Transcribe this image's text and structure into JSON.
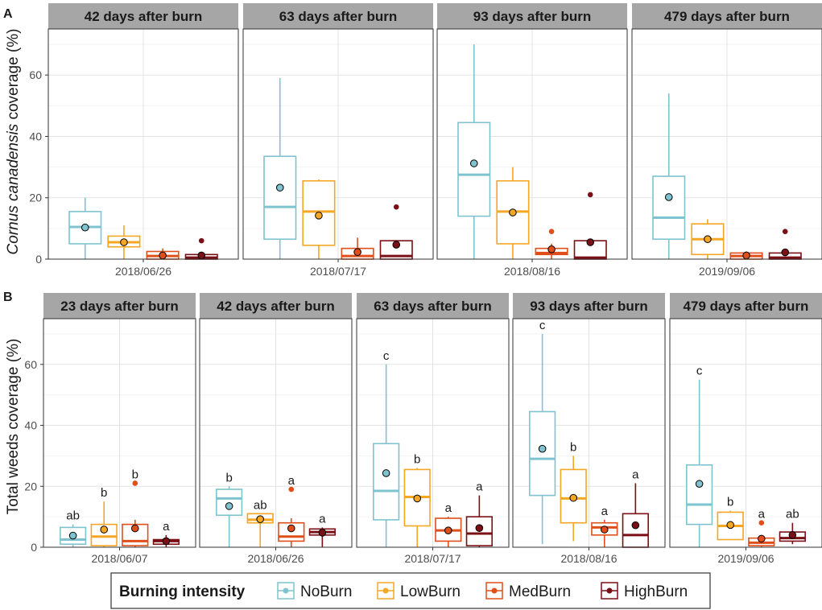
{
  "chart_data": [
    {
      "type": "box",
      "panel_label": "A",
      "ylabel_parts": {
        "italic": "Cornus canadensis",
        "rest": " coverage (%)"
      },
      "ylim": [
        0,
        75
      ],
      "yticks": [
        0,
        20,
        40,
        60
      ],
      "groups": [
        "NoBurn",
        "LowBurn",
        "MedBurn",
        "HighBurn"
      ],
      "facets": [
        {
          "title": "42 days after burn",
          "date": "2018/06/26",
          "boxes": [
            {
              "group": "NoBurn",
              "min": 0,
              "q1": 5,
              "median": 10.5,
              "q3": 15.5,
              "max": 20,
              "mean": 10.3,
              "outliers": [],
              "sig": ""
            },
            {
              "group": "LowBurn",
              "min": 0,
              "q1": 4,
              "median": 5.5,
              "q3": 7.5,
              "max": 11,
              "mean": 5.5,
              "outliers": [],
              "sig": ""
            },
            {
              "group": "MedBurn",
              "min": 0,
              "q1": 0,
              "median": 1,
              "q3": 2.5,
              "max": 3.5,
              "mean": 1.2,
              "outliers": [],
              "sig": ""
            },
            {
              "group": "HighBurn",
              "min": 0,
              "q1": 0,
              "median": 0.5,
              "q3": 1.5,
              "max": 2,
              "mean": 1.2,
              "outliers": [
                6
              ],
              "sig": ""
            }
          ]
        },
        {
          "title": "63 days after burn",
          "date": "2018/07/17",
          "boxes": [
            {
              "group": "NoBurn",
              "min": 0,
              "q1": 6.5,
              "median": 17,
              "q3": 33.5,
              "max": 59,
              "mean": 23.3,
              "outliers": [],
              "sig": ""
            },
            {
              "group": "LowBurn",
              "min": 0,
              "q1": 4.5,
              "median": 15.5,
              "q3": 25.5,
              "max": 26,
              "mean": 14.2,
              "outliers": [],
              "sig": ""
            },
            {
              "group": "MedBurn",
              "min": 0,
              "q1": 0,
              "median": 1,
              "q3": 3.5,
              "max": 7,
              "mean": 2.3,
              "outliers": [],
              "sig": ""
            },
            {
              "group": "HighBurn",
              "min": 0,
              "q1": 0,
              "median": 1,
              "q3": 6,
              "max": 6,
              "mean": 4.7,
              "outliers": [
                17
              ],
              "sig": ""
            }
          ]
        },
        {
          "title": "93 days after burn",
          "date": "2018/08/16",
          "boxes": [
            {
              "group": "NoBurn",
              "min": 0,
              "q1": 14,
              "median": 27.5,
              "q3": 44.5,
              "max": 70,
              "mean": 31.2,
              "outliers": [],
              "sig": ""
            },
            {
              "group": "LowBurn",
              "min": 0,
              "q1": 5,
              "median": 15.5,
              "q3": 25.5,
              "max": 30,
              "mean": 15.2,
              "outliers": [],
              "sig": ""
            },
            {
              "group": "MedBurn",
              "min": 0,
              "q1": 1.5,
              "median": 2,
              "q3": 3.5,
              "max": 5,
              "mean": 3.2,
              "outliers": [
                9
              ],
              "sig": ""
            },
            {
              "group": "HighBurn",
              "min": 0,
              "q1": 0,
              "median": 0.5,
              "q3": 6,
              "max": 6,
              "mean": 5.5,
              "outliers": [
                21
              ],
              "sig": ""
            }
          ]
        },
        {
          "title": "479 days after burn",
          "date": "2019/09/06",
          "boxes": [
            {
              "group": "NoBurn",
              "min": 0,
              "q1": 6.5,
              "median": 13.5,
              "q3": 27,
              "max": 54,
              "mean": 20.2,
              "outliers": [],
              "sig": ""
            },
            {
              "group": "LowBurn",
              "min": 0,
              "q1": 1.5,
              "median": 6.5,
              "q3": 11.5,
              "max": 13,
              "mean": 6.5,
              "outliers": [],
              "sig": ""
            },
            {
              "group": "MedBurn",
              "min": 0,
              "q1": 0,
              "median": 1,
              "q3": 2,
              "max": 2.5,
              "mean": 1.2,
              "outliers": [],
              "sig": ""
            },
            {
              "group": "HighBurn",
              "min": 0,
              "q1": 0,
              "median": 0.5,
              "q3": 2,
              "max": 2,
              "mean": 2.2,
              "outliers": [
                9
              ],
              "sig": ""
            }
          ]
        }
      ]
    },
    {
      "type": "box",
      "panel_label": "B",
      "ylabel": "Total weeds coverage (%)",
      "ylim": [
        0,
        75
      ],
      "yticks": [
        0,
        20,
        40,
        60
      ],
      "groups": [
        "NoBurn",
        "LowBurn",
        "MedBurn",
        "HighBurn"
      ],
      "facets": [
        {
          "title": "23 days after burn",
          "date": "2018/06/07",
          "boxes": [
            {
              "group": "NoBurn",
              "min": 0,
              "q1": 1,
              "median": 2.5,
              "q3": 6.5,
              "max": 7.5,
              "mean": 3.8,
              "outliers": [],
              "sig": "ab"
            },
            {
              "group": "LowBurn",
              "min": 0,
              "q1": 0.5,
              "median": 3.5,
              "q3": 7.5,
              "max": 15,
              "mean": 5.8,
              "outliers": [],
              "sig": "b"
            },
            {
              "group": "MedBurn",
              "min": 0,
              "q1": 0.5,
              "median": 2,
              "q3": 7.5,
              "max": 9,
              "mean": 6.2,
              "outliers": [
                21
              ],
              "sig": "b"
            },
            {
              "group": "HighBurn",
              "min": 0,
              "q1": 1,
              "median": 2,
              "q3": 2.5,
              "max": 4,
              "mean": 2,
              "outliers": [],
              "sig": "a"
            }
          ]
        },
        {
          "title": "42 days after burn",
          "date": "2018/06/26",
          "boxes": [
            {
              "group": "NoBurn",
              "min": 0,
              "q1": 10.5,
              "median": 16,
              "q3": 19,
              "max": 20,
              "mean": 13.5,
              "outliers": [],
              "sig": "b"
            },
            {
              "group": "LowBurn",
              "min": 0,
              "q1": 8,
              "median": 9,
              "q3": 11,
              "max": 11,
              "mean": 9.2,
              "outliers": [],
              "sig": "ab"
            },
            {
              "group": "MedBurn",
              "min": 0,
              "q1": 2,
              "median": 3.5,
              "q3": 8,
              "max": 9.5,
              "mean": 6.2,
              "outliers": [
                19
              ],
              "sig": "a"
            },
            {
              "group": "HighBurn",
              "min": 0,
              "q1": 4,
              "median": 5,
              "q3": 6,
              "max": 6.5,
              "mean": 4.8,
              "outliers": [],
              "sig": "a"
            }
          ]
        },
        {
          "title": "63 days after burn",
          "date": "2018/07/17",
          "boxes": [
            {
              "group": "NoBurn",
              "min": 0,
              "q1": 9,
              "median": 18.5,
              "q3": 34,
              "max": 60,
              "mean": 24.3,
              "outliers": [],
              "sig": "c"
            },
            {
              "group": "LowBurn",
              "min": 0,
              "q1": 7,
              "median": 16.5,
              "q3": 25.5,
              "max": 26,
              "mean": 16,
              "outliers": [],
              "sig": "b"
            },
            {
              "group": "MedBurn",
              "min": 0,
              "q1": 2,
              "median": 5.5,
              "q3": 9.5,
              "max": 10,
              "mean": 5.5,
              "outliers": [],
              "sig": "a"
            },
            {
              "group": "HighBurn",
              "min": 0,
              "q1": 0.5,
              "median": 4.5,
              "q3": 10,
              "max": 17,
              "mean": 6.3,
              "outliers": [],
              "sig": "a"
            }
          ]
        },
        {
          "title": "93 days after burn",
          "date": "2018/08/16",
          "boxes": [
            {
              "group": "NoBurn",
              "min": 1,
              "q1": 17,
              "median": 29,
              "q3": 44.5,
              "max": 70,
              "mean": 32.3,
              "outliers": [],
              "sig": "c"
            },
            {
              "group": "LowBurn",
              "min": 2,
              "q1": 8,
              "median": 16,
              "q3": 25.5,
              "max": 30,
              "mean": 16.2,
              "outliers": [],
              "sig": "b"
            },
            {
              "group": "MedBurn",
              "min": 0,
              "q1": 4,
              "median": 6.5,
              "q3": 8,
              "max": 9,
              "mean": 5.8,
              "outliers": [],
              "sig": "a"
            },
            {
              "group": "HighBurn",
              "min": 0,
              "q1": 0,
              "median": 4,
              "q3": 11,
              "max": 21,
              "mean": 7.2,
              "outliers": [],
              "sig": "a"
            }
          ]
        },
        {
          "title": "479 days after burn",
          "date": "2019/09/06",
          "boxes": [
            {
              "group": "NoBurn",
              "min": 0,
              "q1": 7.5,
              "median": 14,
              "q3": 27,
              "max": 55,
              "mean": 20.8,
              "outliers": [],
              "sig": "c"
            },
            {
              "group": "LowBurn",
              "min": 2.5,
              "q1": 2.5,
              "median": 7,
              "q3": 11.5,
              "max": 12,
              "mean": 7.3,
              "outliers": [],
              "sig": "b"
            },
            {
              "group": "MedBurn",
              "min": 0,
              "q1": 0.5,
              "median": 1.5,
              "q3": 3,
              "max": 4,
              "mean": 2.8,
              "outliers": [
                8
              ],
              "sig": "a"
            },
            {
              "group": "HighBurn",
              "min": 1,
              "q1": 2,
              "median": 3,
              "q3": 5,
              "max": 8,
              "mean": 4,
              "outliers": [],
              "sig": "ab"
            }
          ]
        }
      ]
    }
  ],
  "legend": {
    "title": "Burning intensity",
    "items": [
      {
        "label": "NoBurn",
        "color": "#7ec3cf"
      },
      {
        "label": "LowBurn",
        "color": "#f5a623"
      },
      {
        "label": "MedBurn",
        "color": "#e04e1a"
      },
      {
        "label": "HighBurn",
        "color": "#7b0f16"
      }
    ]
  },
  "colors": {
    "strip_bg": "#a6a6a6",
    "grid": "#e3e3e3",
    "border": "#333333"
  }
}
